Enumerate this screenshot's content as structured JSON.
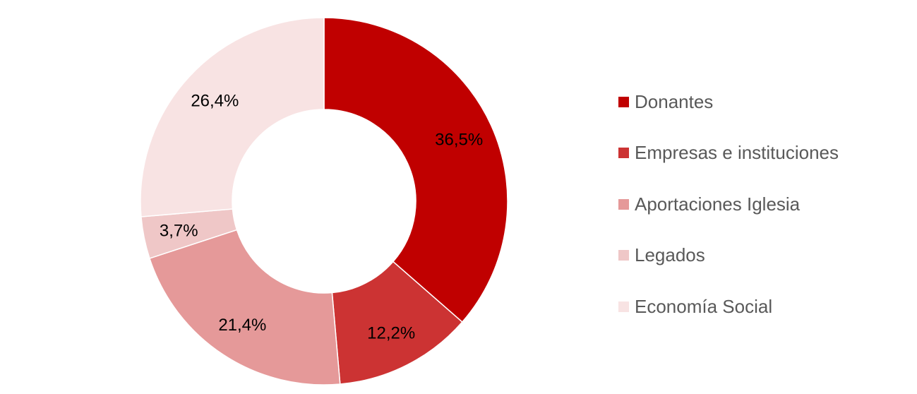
{
  "chart_data": {
    "type": "pie",
    "categories": [
      "Donantes",
      "Empresas e instituciones",
      "Aportaciones Iglesia",
      "Legados",
      "Economía Social"
    ],
    "values": [
      36.5,
      12.2,
      21.4,
      3.7,
      26.4
    ],
    "value_labels": [
      "36,5%",
      "12,2%",
      "21,4%",
      "3,7%",
      "26,4%"
    ],
    "colors": [
      "#C00000",
      "#CC3333",
      "#E59999",
      "#EFC7C7",
      "#F8E3E3"
    ],
    "donut": true,
    "legend_position": "right"
  }
}
